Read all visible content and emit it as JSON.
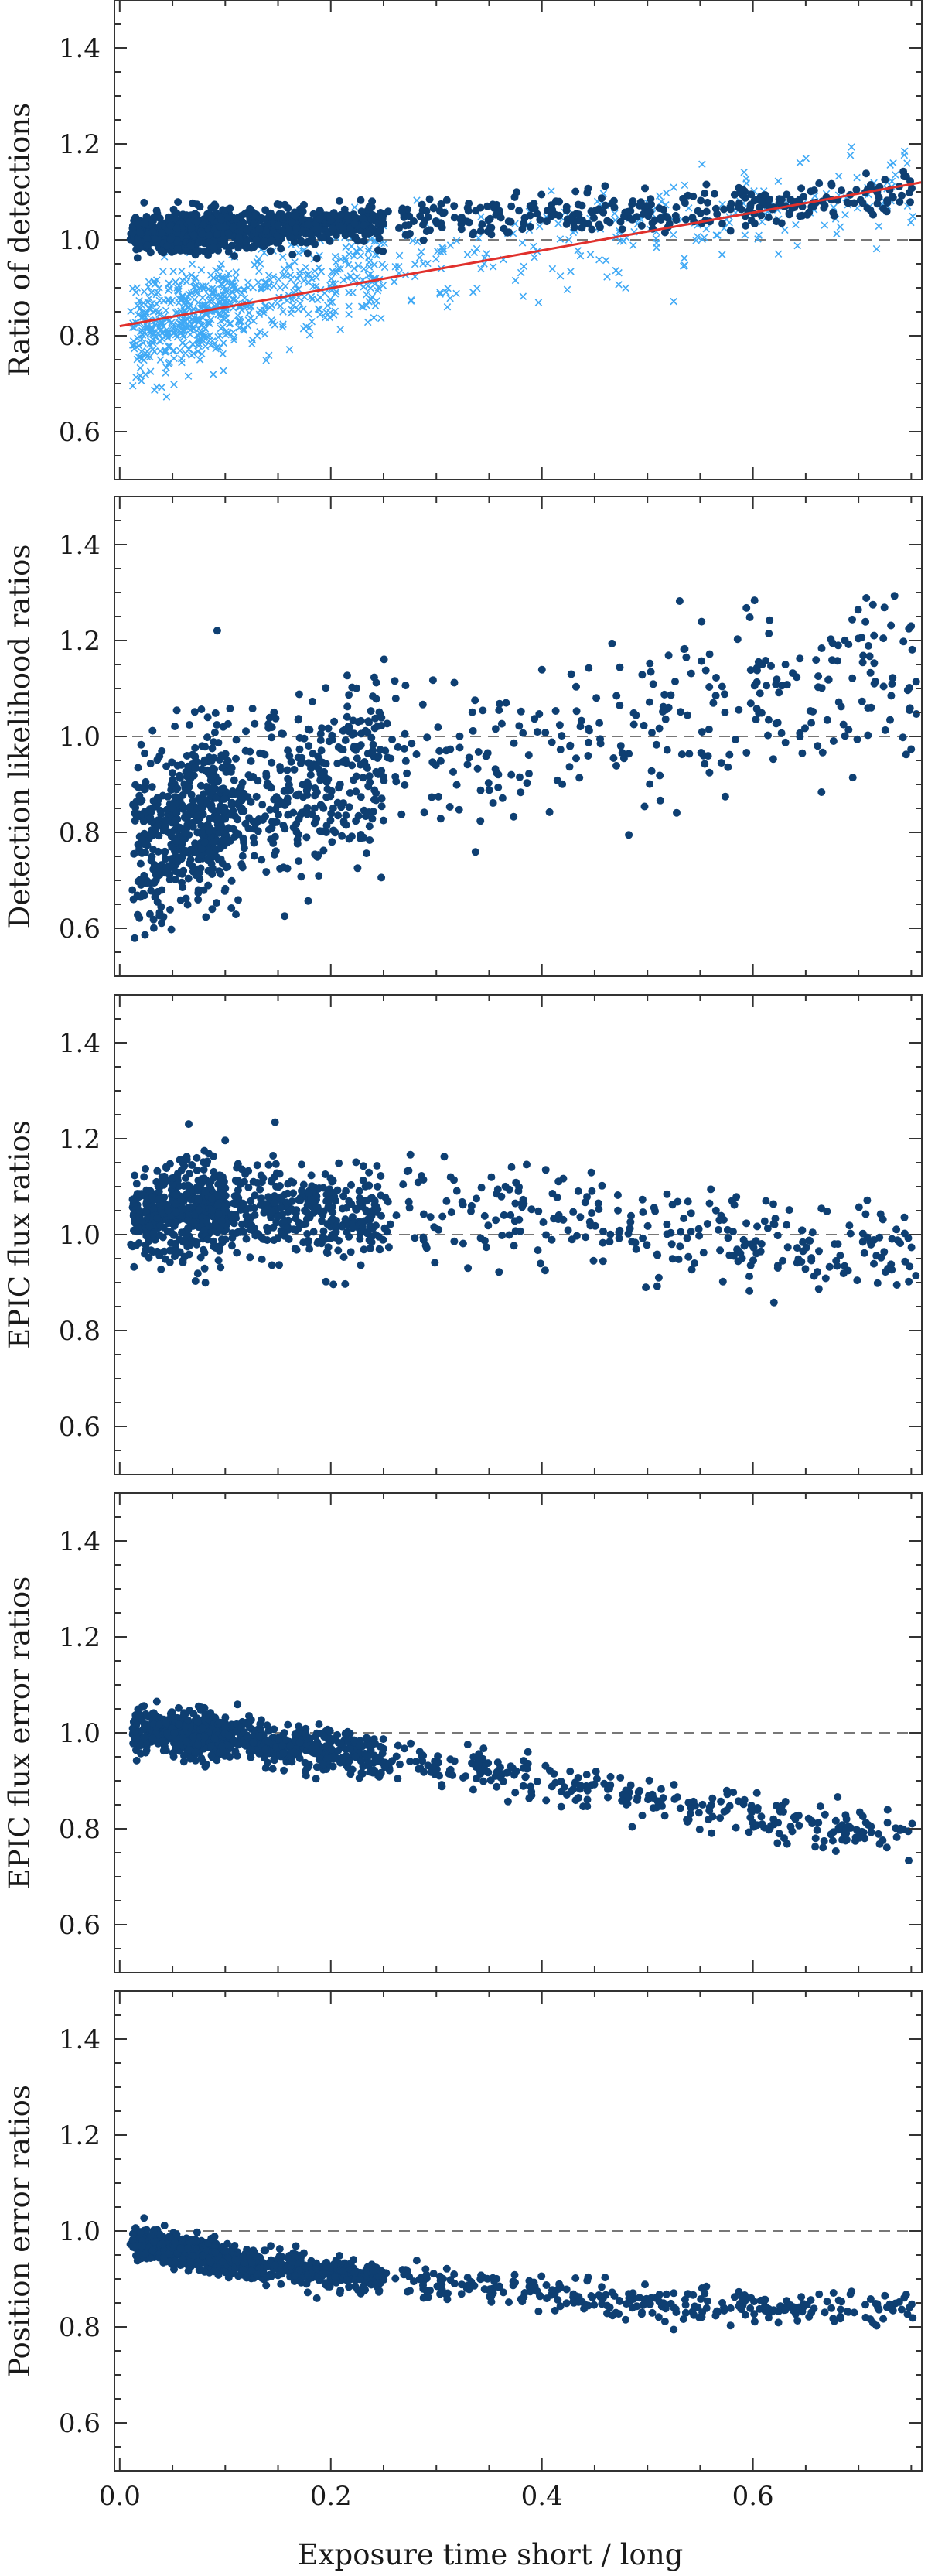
{
  "chart_data": [
    {
      "type": "scatter",
      "ylabel": "Ratio of detections",
      "ylim": [
        0.5,
        1.5
      ],
      "yticks": [
        "0.6",
        "0.8",
        "1.0",
        "1.2",
        "1.4"
      ],
      "reference_line_y": 1.0,
      "colors": {
        "series": "#0e3f72",
        "secondary": "#3fa9f5",
        "fit": "#e0302c"
      },
      "trend": {
        "x": [
          0.01,
          0.1,
          0.2,
          0.3,
          0.4,
          0.5,
          0.6,
          0.7,
          0.76
        ],
        "y": [
          1.01,
          1.02,
          1.03,
          1.04,
          1.05,
          1.06,
          1.07,
          1.09,
          1.1
        ]
      },
      "spread": 0.02,
      "trend2": {
        "x": [
          0.01,
          0.1,
          0.2,
          0.3,
          0.4,
          0.5,
          0.6,
          0.7,
          0.76
        ],
        "y": [
          0.8,
          0.86,
          0.91,
          0.95,
          0.99,
          1.03,
          1.06,
          1.09,
          1.12
        ]
      },
      "spread2": 0.05,
      "fit_line": {
        "x": [
          0.0,
          0.76
        ],
        "y": [
          0.82,
          1.12
        ]
      }
    },
    {
      "type": "scatter",
      "ylabel": "Detection likelihood ratios",
      "ylim": [
        0.5,
        1.5
      ],
      "yticks": [
        "0.6",
        "0.8",
        "1.0",
        "1.2",
        "1.4"
      ],
      "reference_line_y": 1.0,
      "colors": {
        "series": "#0e3f72"
      },
      "trend": {
        "x": [
          0.01,
          0.1,
          0.2,
          0.3,
          0.4,
          0.5,
          0.6,
          0.7,
          0.76
        ],
        "y": [
          0.78,
          0.84,
          0.9,
          0.96,
          1.01,
          1.05,
          1.08,
          1.1,
          1.12
        ]
      },
      "spread": 0.09
    },
    {
      "type": "scatter",
      "ylabel": "EPIC flux ratios",
      "ylim": [
        0.5,
        1.5
      ],
      "yticks": [
        "0.6",
        "0.8",
        "1.0",
        "1.2",
        "1.4"
      ],
      "reference_line_y": 1.0,
      "colors": {
        "series": "#0e3f72"
      },
      "trend": {
        "x": [
          0.01,
          0.1,
          0.2,
          0.3,
          0.4,
          0.5,
          0.6,
          0.7,
          0.76
        ],
        "y": [
          1.04,
          1.06,
          1.05,
          1.04,
          1.03,
          1.01,
          0.99,
          0.97,
          0.96
        ]
      },
      "spread": 0.05
    },
    {
      "type": "scatter",
      "ylabel": "EPIC flux error ratios",
      "ylim": [
        0.5,
        1.5
      ],
      "yticks": [
        "0.6",
        "0.8",
        "1.0",
        "1.2",
        "1.4"
      ],
      "reference_line_y": 1.0,
      "colors": {
        "series": "#0e3f72"
      },
      "trend": {
        "x": [
          0.01,
          0.1,
          0.2,
          0.3,
          0.4,
          0.5,
          0.6,
          0.7,
          0.76
        ],
        "y": [
          1.01,
          0.99,
          0.96,
          0.93,
          0.9,
          0.86,
          0.83,
          0.8,
          0.78
        ]
      },
      "spread": 0.022
    },
    {
      "type": "scatter",
      "ylabel": "Position error ratios",
      "ylim": [
        0.5,
        1.5
      ],
      "yticks": [
        "0.6",
        "0.8",
        "1.0",
        "1.2",
        "1.4"
      ],
      "reference_line_y": 1.0,
      "colors": {
        "series": "#0e3f72"
      },
      "trend": {
        "x": [
          0.01,
          0.1,
          0.2,
          0.3,
          0.4,
          0.5,
          0.6,
          0.7,
          0.76
        ],
        "y": [
          0.98,
          0.94,
          0.91,
          0.89,
          0.87,
          0.85,
          0.84,
          0.84,
          0.84
        ]
      },
      "spread": 0.016
    }
  ],
  "shared_x": {
    "label": "Exposure time  short / long",
    "xlim": [
      -0.005,
      0.76
    ],
    "ticks": [
      "0.0",
      "0.2",
      "0.4",
      "0.6"
    ]
  }
}
